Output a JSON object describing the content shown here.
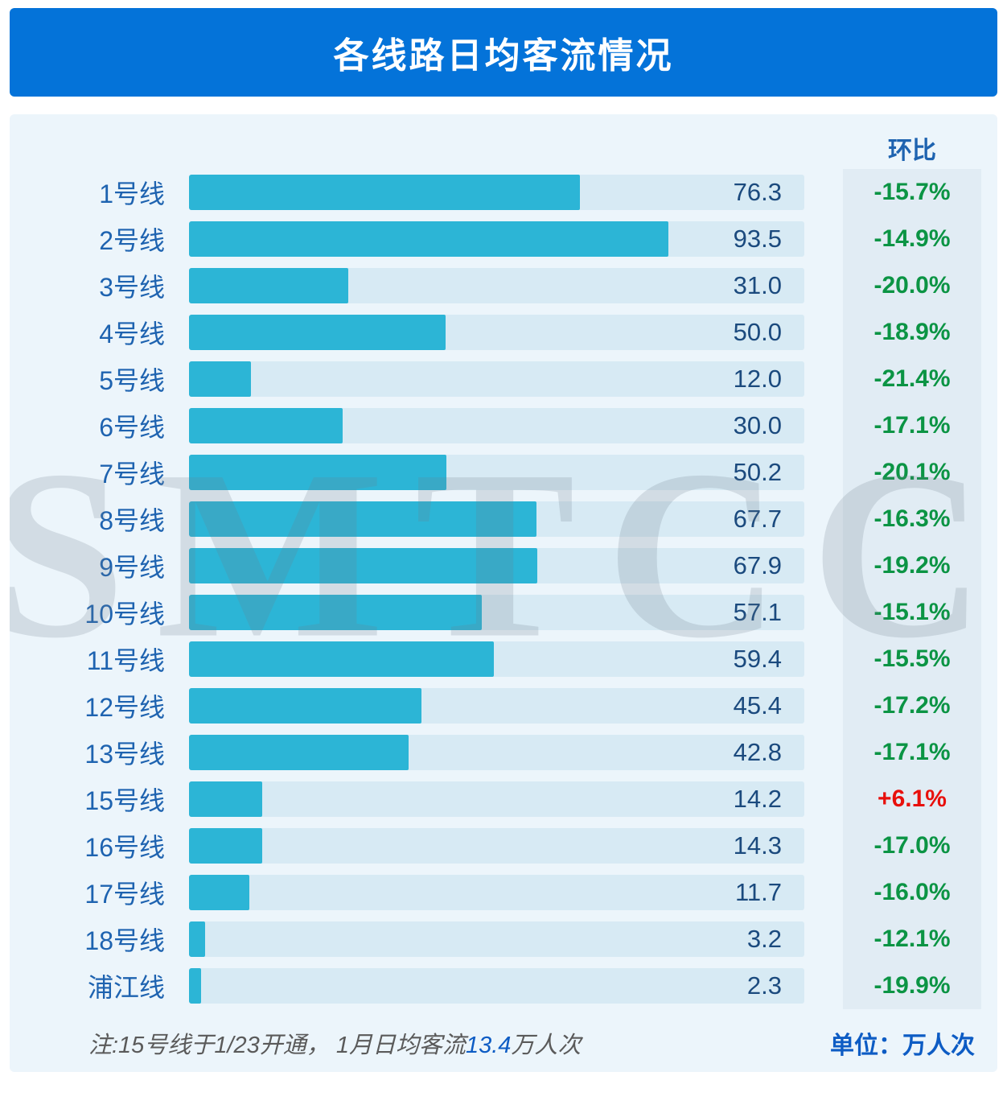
{
  "header": {
    "title": "各线路日均客流情况"
  },
  "chart_data": {
    "type": "bar",
    "orientation": "horizontal",
    "title": "各线路日均客流情况",
    "change_header": "环比",
    "xlim": [
      0,
      120
    ],
    "categories": [
      "1号线",
      "2号线",
      "3号线",
      "4号线",
      "5号线",
      "6号线",
      "7号线",
      "8号线",
      "9号线",
      "10号线",
      "11号线",
      "12号线",
      "13号线",
      "15号线",
      "16号线",
      "17号线",
      "18号线",
      "浦江线"
    ],
    "values": [
      76.3,
      93.5,
      31.0,
      50.0,
      12.0,
      30.0,
      50.2,
      67.7,
      67.9,
      57.1,
      59.4,
      45.4,
      42.8,
      14.2,
      14.3,
      11.7,
      3.2,
      2.3
    ],
    "value_labels": [
      "76.3",
      "93.5",
      "31.0",
      "50.0",
      "12.0",
      "30.0",
      "50.2",
      "67.7",
      "67.9",
      "57.1",
      "59.4",
      "45.4",
      "42.8",
      "14.2",
      "14.3",
      "11.7",
      "3.2",
      "2.3"
    ],
    "changes": [
      "-15.7%",
      "-14.9%",
      "-20.0%",
      "-18.9%",
      "-21.4%",
      "-17.1%",
      "-20.1%",
      "-16.3%",
      "-19.2%",
      "-15.1%",
      "-15.5%",
      "-17.2%",
      "-17.1%",
      "+6.1%",
      "-17.0%",
      "-16.0%",
      "-12.1%",
      "-19.9%"
    ]
  },
  "footer": {
    "note_prefix": "注:15号线于1/23开通， 1月日均客流",
    "note_highlight": "13.4",
    "note_suffix": "万人次",
    "unit_label": "单位：万人次"
  },
  "watermark": "SMTCC",
  "colors": {
    "header-blue": "#0473d9",
    "content-bg": "#ecf5fb",
    "track-bg": "#d7eaf4",
    "bar-fill": "#2cb5d6",
    "label-color": "#1e63b0",
    "value-color": "#1b4a7e",
    "change-panel-bg": "#e1ecf4",
    "green": "#0b9444",
    "red": "#e8100c",
    "note-gray": "#5a5a5a",
    "unit-blue": "#0d5cc4"
  }
}
